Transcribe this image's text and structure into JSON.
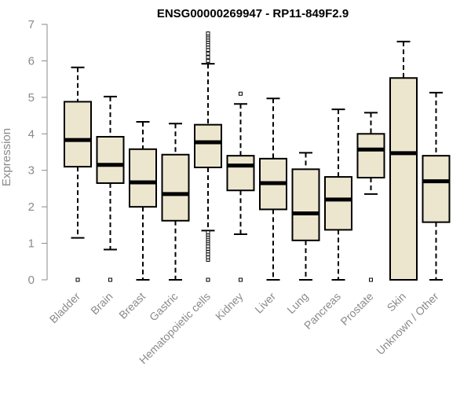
{
  "chart_data": {
    "type": "boxplot",
    "title": "ENSG00000269947 - RP11-849F2.9",
    "xlabel": "",
    "ylabel": "Expression",
    "ylim": [
      0,
      7
    ],
    "yticks": [
      "0",
      "1",
      "2",
      "3",
      "4",
      "5",
      "6",
      "7"
    ],
    "box_fill": "#ede6cf",
    "categories": [
      "Bladder",
      "Brain",
      "Breast",
      "Gastric",
      "Hematopoietic cells",
      "Kidney",
      "Liver",
      "Lung",
      "Pancreas",
      "Prostate",
      "Skin",
      "Unknown / Other"
    ],
    "boxes": [
      {
        "name": "Bladder",
        "whisker_low": 1.15,
        "q1": 3.1,
        "median": 3.83,
        "q3": 4.88,
        "whisker_high": 5.82,
        "outliers": [
          0.0
        ]
      },
      {
        "name": "Brain",
        "whisker_low": 0.83,
        "q1": 2.65,
        "median": 3.15,
        "q3": 3.92,
        "whisker_high": 5.02,
        "outliers": [
          0.0
        ]
      },
      {
        "name": "Breast",
        "whisker_low": 0.0,
        "q1": 2.0,
        "median": 2.67,
        "q3": 3.58,
        "whisker_high": 4.33,
        "outliers": []
      },
      {
        "name": "Gastric",
        "whisker_low": 0.0,
        "q1": 1.62,
        "median": 2.35,
        "q3": 3.43,
        "whisker_high": 4.28,
        "outliers": []
      },
      {
        "name": "Hematopoietic cells",
        "whisker_low": 1.35,
        "q1": 3.08,
        "median": 3.77,
        "q3": 4.25,
        "whisker_high": 5.92,
        "outliers": [
          0.0,
          0.55,
          0.62,
          0.7,
          0.78,
          0.85,
          0.92,
          1.0,
          1.06,
          1.12,
          1.18,
          1.24,
          1.3,
          6.0,
          6.1,
          6.2,
          6.3,
          6.38,
          6.45,
          6.52,
          6.58,
          6.64,
          6.7,
          6.75
        ]
      },
      {
        "name": "Kidney",
        "whisker_low": 1.25,
        "q1": 2.45,
        "median": 3.13,
        "q3": 3.4,
        "whisker_high": 4.82,
        "outliers": [
          0.0,
          5.1
        ]
      },
      {
        "name": "Liver",
        "whisker_low": 0.0,
        "q1": 1.93,
        "median": 2.65,
        "q3": 3.32,
        "whisker_high": 4.97,
        "outliers": []
      },
      {
        "name": "Lung",
        "whisker_low": 0.0,
        "q1": 1.08,
        "median": 1.82,
        "q3": 3.03,
        "whisker_high": 3.48,
        "outliers": []
      },
      {
        "name": "Pancreas",
        "whisker_low": 0.0,
        "q1": 1.37,
        "median": 2.2,
        "q3": 2.82,
        "whisker_high": 4.67,
        "outliers": []
      },
      {
        "name": "Prostate",
        "whisker_low": 2.35,
        "q1": 2.8,
        "median": 3.57,
        "q3": 4.0,
        "whisker_high": 4.58,
        "outliers": [
          0.0
        ]
      },
      {
        "name": "Skin",
        "whisker_low": 0.0,
        "q1": 0.0,
        "median": 3.47,
        "q3": 5.53,
        "whisker_high": 6.53,
        "outliers": []
      },
      {
        "name": "Unknown / Other",
        "whisker_low": 0.0,
        "q1": 1.58,
        "median": 2.7,
        "q3": 3.4,
        "whisker_high": 5.13,
        "outliers": []
      }
    ]
  }
}
